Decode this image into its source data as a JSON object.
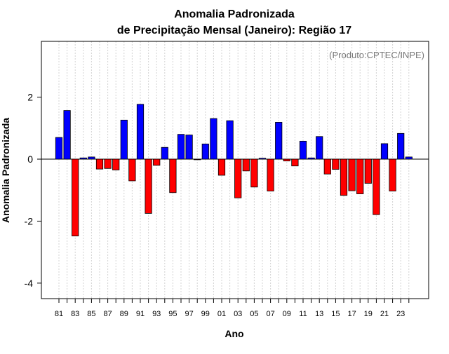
{
  "chart_data": {
    "type": "bar",
    "title": "Anomalia Padronizada",
    "subtitle": "de Precipitação Mensal (Janeiro): Região 17",
    "xlabel": "Ano",
    "ylabel": "Anomalia Padronizada",
    "annotation": "(Produto:CPTEC/INPE)",
    "ylim": [
      -4.5,
      3.8
    ],
    "y_ticks": [
      -4,
      -2,
      0,
      2
    ],
    "x_tick_labels": [
      "81",
      "83",
      "85",
      "87",
      "89",
      "91",
      "93",
      "95",
      "97",
      "99",
      "01",
      "03",
      "05",
      "07",
      "09",
      "11",
      "13",
      "15",
      "17",
      "19",
      "21",
      "23"
    ],
    "categories": [
      "1981",
      "1982",
      "1983",
      "1984",
      "1985",
      "1986",
      "1987",
      "1988",
      "1989",
      "1990",
      "1991",
      "1992",
      "1993",
      "1994",
      "1995",
      "1996",
      "1997",
      "1998",
      "1999",
      "2000",
      "2001",
      "2002",
      "2003",
      "2004",
      "2005",
      "2006",
      "2007",
      "2008",
      "2009",
      "2010",
      "2011",
      "2012",
      "2013",
      "2014",
      "2015",
      "2016",
      "2017",
      "2018",
      "2019",
      "2020",
      "2021",
      "2022",
      "2023",
      "2024"
    ],
    "values": [
      0.7,
      1.57,
      -2.48,
      0.04,
      0.07,
      -0.32,
      -0.3,
      -0.35,
      1.26,
      -0.7,
      1.77,
      -1.75,
      -0.2,
      0.38,
      -1.08,
      0.8,
      0.78,
      -0.02,
      0.49,
      1.31,
      -0.52,
      1.24,
      -1.25,
      -0.38,
      -0.9,
      0.03,
      -1.03,
      1.19,
      -0.06,
      -0.22,
      0.58,
      0.04,
      0.73,
      -0.48,
      -0.33,
      -1.17,
      -1.02,
      -1.12,
      -0.78,
      -1.79,
      0.5,
      -1.03,
      0.83,
      0.07
    ],
    "colors": {
      "positive": "#0000ff",
      "negative": "#ff0000",
      "zero_line": "#000000",
      "grid": "#d3d3d3",
      "annotation": "#777777"
    },
    "grid": true,
    "legend": "none"
  }
}
